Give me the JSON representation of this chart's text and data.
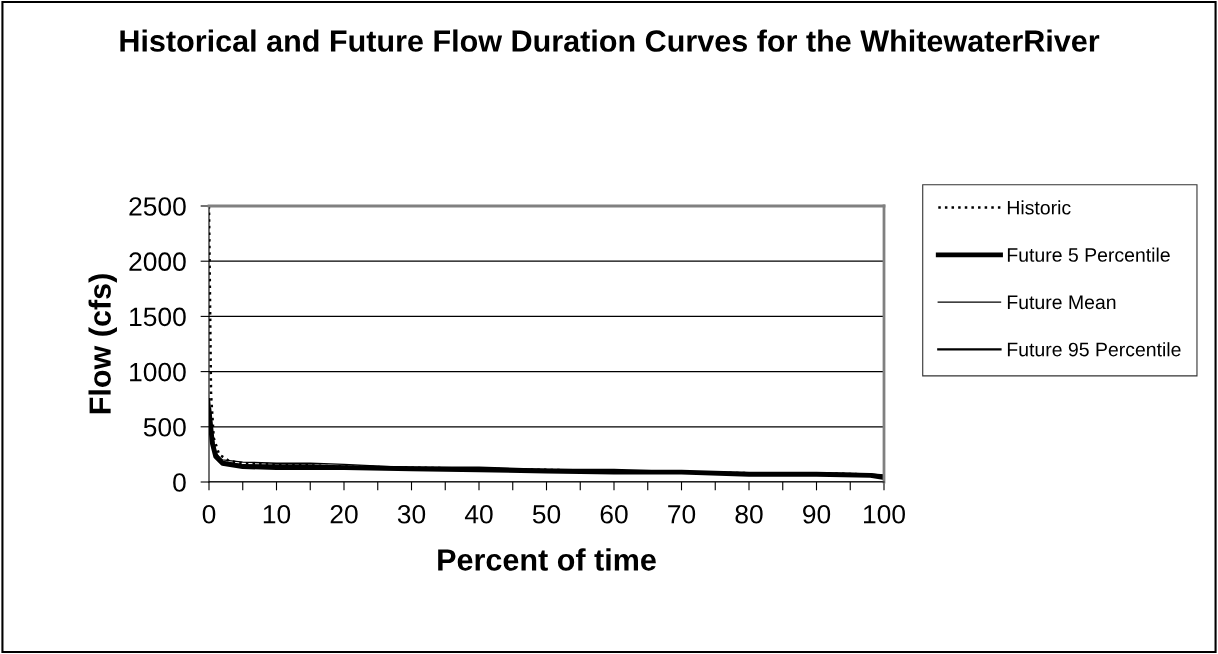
{
  "chart_data": {
    "type": "line",
    "title": "Historical and Future Flow Duration Curves for the WhitewaterRiver",
    "xlabel": "Percent of time",
    "ylabel": "Flow (cfs)",
    "series": [
      {
        "name": "Historic",
        "color": "#000000",
        "line_style": "dotted",
        "x": [
          0,
          0.3,
          0.7,
          1.5,
          3,
          5,
          10,
          15,
          20,
          30,
          40,
          50,
          60,
          70,
          80,
          90,
          97,
          100
        ],
        "values": [
          2500,
          800,
          400,
          250,
          190,
          170,
          160,
          150,
          140,
          130,
          120,
          110,
          100,
          90,
          80,
          80,
          70,
          50
        ]
      },
      {
        "name": "Future 5 Percentile",
        "color": "#000000",
        "line_style": "solid",
        "x": [
          0,
          0.5,
          1,
          2,
          5,
          10,
          20,
          30,
          40,
          50,
          60,
          70,
          80,
          90,
          98,
          100
        ],
        "values": [
          650,
          350,
          230,
          170,
          140,
          130,
          130,
          120,
          110,
          100,
          90,
          90,
          70,
          70,
          60,
          40
        ]
      },
      {
        "name": "Future Mean",
        "color": "#000000",
        "line_style": "solid",
        "x": [
          0,
          0.5,
          1,
          2,
          5,
          10,
          15,
          20,
          30,
          40,
          50,
          60,
          70,
          80,
          90,
          98,
          100
        ],
        "values": [
          700,
          380,
          250,
          200,
          180,
          170,
          170,
          160,
          130,
          120,
          110,
          100,
          90,
          80,
          70,
          70,
          50
        ]
      },
      {
        "name": "Future 95 Percentile",
        "color": "#000000",
        "line_style": "solid",
        "x": [
          0,
          0.5,
          1,
          2,
          5,
          10,
          15,
          20,
          30,
          40,
          50,
          60,
          70,
          80,
          90,
          98,
          100
        ],
        "values": [
          750,
          400,
          260,
          180,
          150,
          150,
          150,
          140,
          130,
          130,
          110,
          110,
          90,
          80,
          80,
          70,
          60
        ]
      }
    ],
    "xlim": [
      0,
      100
    ],
    "xticks": [
      0,
      {
        "value": 5,
        "label": null
      },
      10,
      {
        "value": 15,
        "label": null
      },
      20,
      {
        "value": 25,
        "label": null
      },
      30,
      {
        "value": 35,
        "label": null
      },
      40,
      {
        "value": 45,
        "label": null
      },
      50,
      {
        "value": 55,
        "label": null
      },
      60,
      {
        "value": 65,
        "label": null
      },
      70,
      {
        "value": 75,
        "label": null
      },
      80,
      {
        "value": 85,
        "label": null
      },
      90,
      {
        "value": 95,
        "label": null
      },
      100
    ],
    "ylim": [
      0,
      2500
    ],
    "yticks": [
      0,
      500,
      1000,
      1500,
      2000,
      2500
    ],
    "grid": "y",
    "legend": "right"
  }
}
